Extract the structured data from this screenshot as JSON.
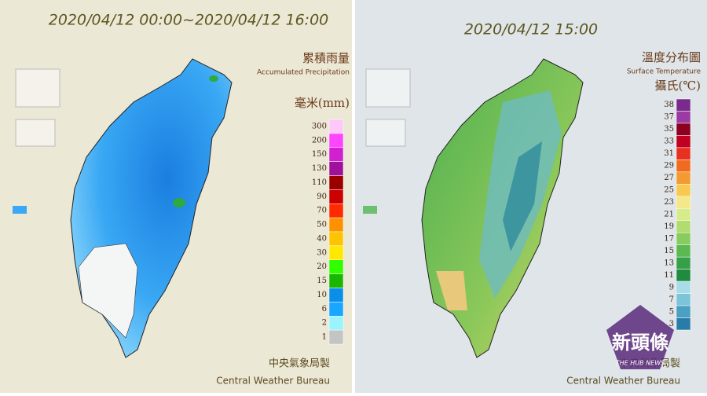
{
  "left_panel": {
    "title": "2020/04/12 00:00~2020/04/12 16:00",
    "legend_title": "累積雨量",
    "legend_subtitle": "Accumulated Precipitation",
    "unit": "毫米(mm)",
    "levels": [
      300,
      200,
      150,
      130,
      110,
      90,
      70,
      50,
      40,
      30,
      20,
      15,
      10,
      6,
      2,
      1
    ],
    "colors": [
      "#ffc8fb",
      "#ff44ff",
      "#d020d0",
      "#a0109c",
      "#9a0000",
      "#cc0000",
      "#ff2a00",
      "#ff9000",
      "#ffc400",
      "#ffe800",
      "#30ff00",
      "#19b800",
      "#0a8fe8",
      "#1aa6ff",
      "#99f4ff",
      "#c4c4c4"
    ],
    "footer_cn": "中央氣象局製",
    "footer_en": "Central Weather Bureau"
  },
  "right_panel": {
    "title": "2020/04/12 15:00",
    "legend_title": "溫度分布圖",
    "legend_subtitle": "Surface Temperature",
    "unit": "攝氏(℃)",
    "levels": [
      38,
      37,
      35,
      33,
      31,
      29,
      27,
      25,
      23,
      21,
      19,
      17,
      15,
      13,
      11,
      9,
      7,
      5,
      3
    ],
    "colors": [
      "#7a2a8c",
      "#9b3aa0",
      "#8e0020",
      "#c00020",
      "#e83020",
      "#f06a20",
      "#f59a30",
      "#f8c850",
      "#f4e88a",
      "#d8eb8a",
      "#b0dc70",
      "#88cc60",
      "#5cb850",
      "#36a048",
      "#208a40",
      "#a8dce8",
      "#7cc4d8",
      "#4aa0c0",
      "#2a7ca8"
    ],
    "footer_cn": "中央氣象局製",
    "footer_en": "Central Weather Bureau"
  },
  "watermark": {
    "name": "新頭條",
    "subtitle": "THE HUB NEWS"
  }
}
